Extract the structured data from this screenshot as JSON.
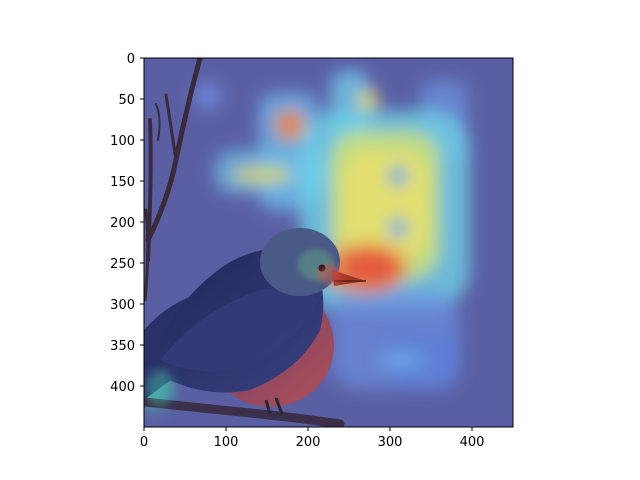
{
  "figure": {
    "x_ticks": [
      "0",
      "100",
      "200",
      "300",
      "400"
    ],
    "y_ticks": [
      "0",
      "50",
      "100",
      "150",
      "200",
      "250",
      "300",
      "350",
      "400"
    ]
  },
  "image": {
    "subject": "bird perched on branch with attention heatmap overlay",
    "colormap": "jet",
    "colors": {
      "overlay_base": "#5a5fa3",
      "heat_cyan": "#62c9e6",
      "heat_yellow": "#e9df6c",
      "heat_red": "#e44432",
      "bird_back": "#2f3770",
      "bird_belly": "#a24a55",
      "bird_head": "#4a5a86",
      "beak": "#a23a28",
      "branch": "#3a2a3a"
    }
  }
}
